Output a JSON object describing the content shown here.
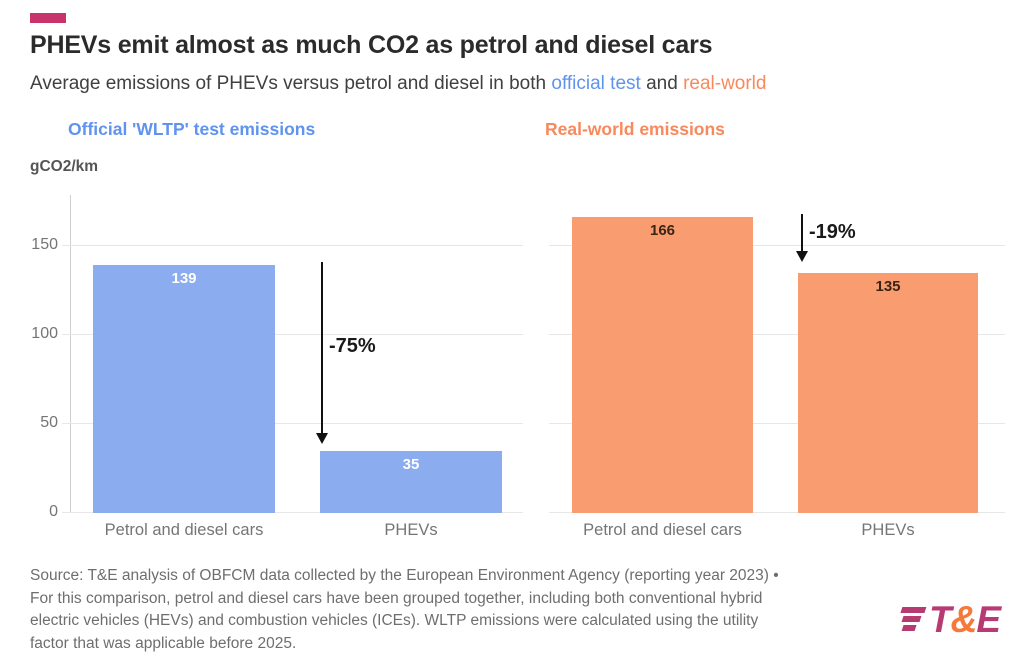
{
  "accent_color": "#c8336c",
  "header": {
    "title": "PHEVs emit almost as much CO2 as petrol and diesel cars",
    "subtitle_prefix": "Average emissions of PHEVs versus petrol and diesel in both ",
    "subtitle_official": "official test",
    "subtitle_and": " and ",
    "subtitle_realworld": "real-world"
  },
  "axis": {
    "unit_label": "gCO2/km",
    "yticks": [
      0,
      50,
      100,
      150
    ]
  },
  "chart_data": [
    {
      "type": "bar",
      "title": "Official 'WLTP' test emissions",
      "categories": [
        "Petrol and diesel cars",
        "PHEVs"
      ],
      "values": [
        139,
        35
      ],
      "annotation": "-75%",
      "bar_color": "#8cacf0",
      "value_label_color": "#ffffff",
      "ylabel": "gCO2/km",
      "yticks": [
        0,
        50,
        100,
        150
      ],
      "ylim": [
        0,
        180
      ],
      "grid": true,
      "legend": "none"
    },
    {
      "type": "bar",
      "title": "Real-world emissions",
      "categories": [
        "Petrol and diesel cars",
        "PHEVs"
      ],
      "values": [
        166,
        135
      ],
      "annotation": "-19%",
      "bar_color": "#f99d70",
      "value_label_color": "#3a2416",
      "ylabel": "gCO2/km",
      "yticks": [
        0,
        50,
        100,
        150
      ],
      "ylim": [
        0,
        180
      ],
      "grid": true,
      "legend": "none"
    }
  ],
  "footer": {
    "source_lines": [
      "Source: T&E analysis of OBFCM data collected by the European Environment Agency (reporting year 2023) •",
      "For this comparison, petrol and diesel cars have been grouped together, including both conventional hybrid",
      "electric vehicles (HEVs) and combustion vehicles (ICEs). WLTP emissions were calculated using the utility",
      "factor that was applicable before 2025."
    ],
    "logo": {
      "t": "T",
      "amp": "&",
      "e": "E"
    }
  }
}
